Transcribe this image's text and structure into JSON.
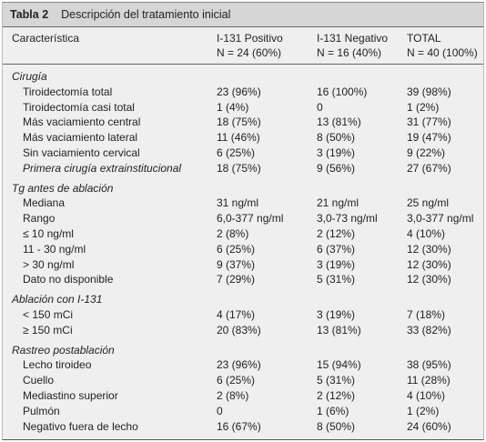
{
  "title": {
    "label": "Tabla 2",
    "text": "Descripción del tratamiento inicial"
  },
  "header": {
    "first": "Característica",
    "columns": [
      {
        "name": "I-131 Positivo",
        "n": "N = 24 (60%)"
      },
      {
        "name": "I-131 Negativo",
        "n": "N = 16 (40%)"
      },
      {
        "name": "TOTAL",
        "n": "N = 40 (100%)"
      }
    ]
  },
  "sections": [
    {
      "heading": "Cirugía",
      "rows": [
        {
          "label": "Tiroidectomía total",
          "values": [
            "23 (96%)",
            "16 (100%)",
            "39 (98%)"
          ]
        },
        {
          "label": "Tiroidectomía casi total",
          "values": [
            "1 (4%)",
            "0",
            "1 (2%)"
          ]
        },
        {
          "label": "Más vaciamiento central",
          "values": [
            "18 (75%)",
            "13 (81%)",
            "31 (77%)"
          ]
        },
        {
          "label": "Más vaciamiento lateral",
          "values": [
            "11 (46%)",
            "8 (50%)",
            "19 (47%)"
          ]
        },
        {
          "label": "Sin vaciamiento cervical",
          "values": [
            "6 (25%)",
            "3 (19%)",
            "9 (22%)"
          ]
        },
        {
          "label": "Primera cirugía extrainstitucional",
          "italic": true,
          "values": [
            "18 (75%)",
            "9 (56%)",
            "27 (67%)"
          ]
        }
      ]
    },
    {
      "heading": "Tg antes de ablación",
      "rows": [
        {
          "label": "Mediana",
          "values": [
            "31 ng/ml",
            "21 ng/ml",
            "25 ng/ml"
          ]
        },
        {
          "label": "Rango",
          "values": [
            "6,0-377 ng/ml",
            "3,0-73 ng/ml",
            "3,0-377 ng/ml"
          ]
        },
        {
          "label": "≤ 10 ng/ml",
          "values": [
            "2 (8%)",
            "2 (12%)",
            "4 (10%)"
          ]
        },
        {
          "label": "11 - 30 ng/ml",
          "values": [
            "6 (25%)",
            "6 (37%)",
            "12 (30%)"
          ]
        },
        {
          "label": "> 30 ng/ml",
          "values": [
            "9 (37%)",
            "3 (19%)",
            "12 (30%)"
          ]
        },
        {
          "label": "Dato no disponible",
          "values": [
            "7 (29%)",
            "5 (31%)",
            "12 (30%)"
          ]
        }
      ]
    },
    {
      "heading": "Ablación con I-131",
      "rows": [
        {
          "label": "< 150 mCi",
          "values": [
            "4 (17%)",
            "3 (19%)",
            "7 (18%)"
          ]
        },
        {
          "label": "≥ 150 mCi",
          "values": [
            "20 (83%)",
            "13 (81%)",
            "33 (82%)"
          ]
        }
      ]
    },
    {
      "heading": "Rastreo postablación",
      "rows": [
        {
          "label": "Lecho tiroideo",
          "values": [
            "23 (96%)",
            "15 (94%)",
            "38 (95%)"
          ]
        },
        {
          "label": "Cuello",
          "values": [
            "6 (25%)",
            "5 (31%)",
            "11 (28%)"
          ]
        },
        {
          "label": "Mediastino superior",
          "values": [
            "2 (8%)",
            "2 (12%)",
            "4 (10%)"
          ]
        },
        {
          "label": "Pulmón",
          "values": [
            "0",
            "1 (6%)",
            "1 (2%)"
          ]
        },
        {
          "label": "Negativo fuera de lecho",
          "values": [
            "16 (67%)",
            "8 (50%)",
            "24 (60%)"
          ]
        }
      ]
    }
  ]
}
